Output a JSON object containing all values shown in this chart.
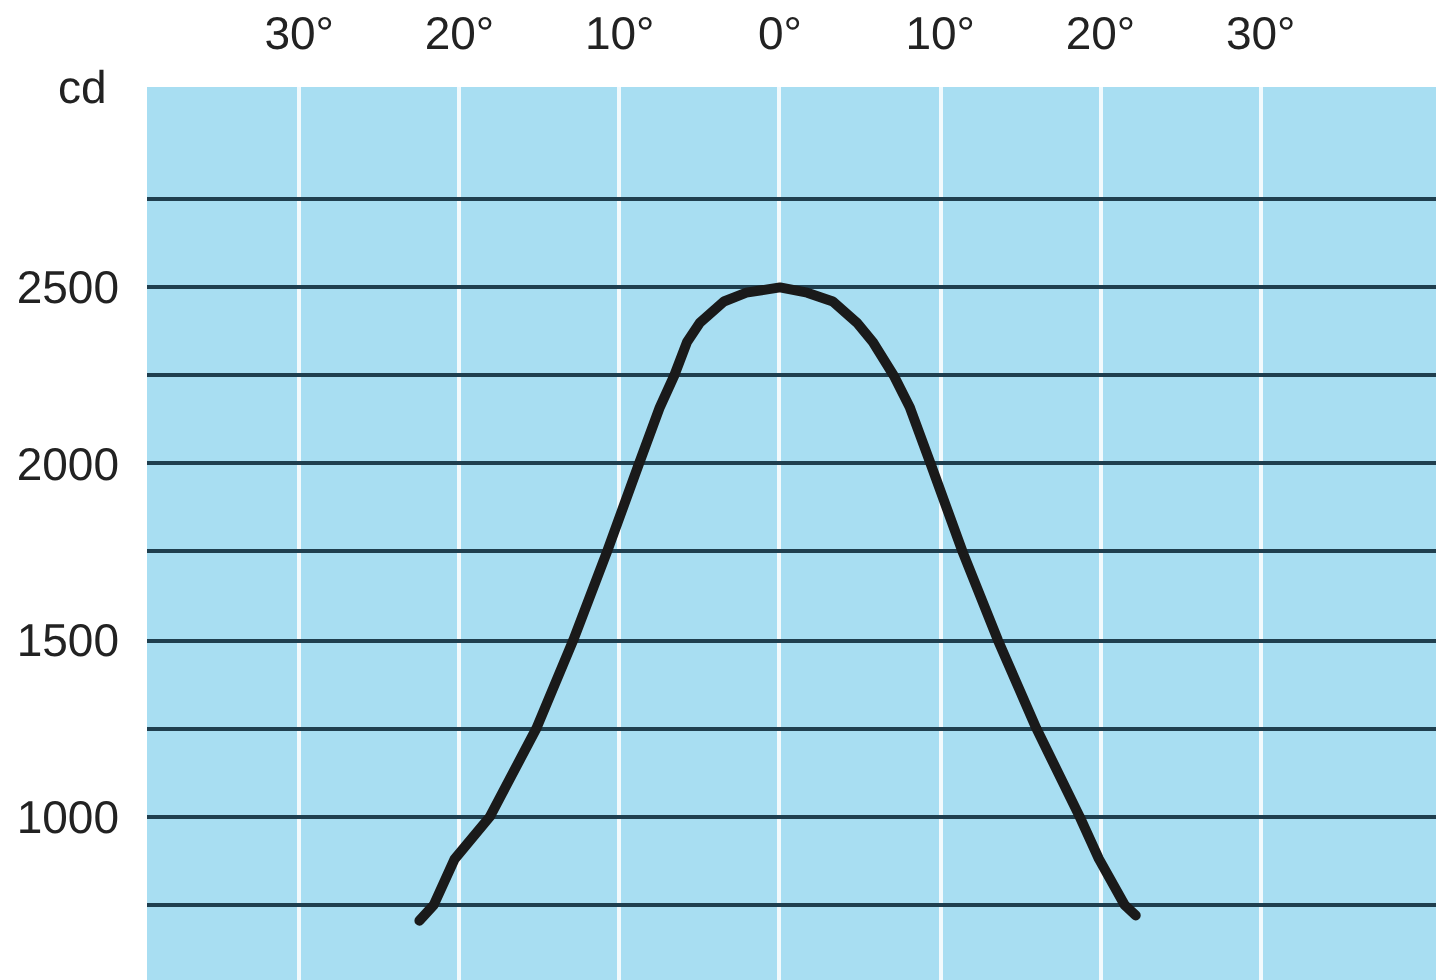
{
  "chart_data": {
    "type": "line",
    "ylabel": "cd",
    "xlim": [
      -39.5,
      41
    ],
    "ylim": [
      534,
      3068
    ],
    "xticks": [
      {
        "value": -30,
        "label": "30°"
      },
      {
        "value": -20,
        "label": "20°"
      },
      {
        "value": -10,
        "label": "10°"
      },
      {
        "value": 0,
        "label": "0°"
      },
      {
        "value": 10,
        "label": "10°"
      },
      {
        "value": 20,
        "label": "20°"
      },
      {
        "value": 30,
        "label": "30°"
      }
    ],
    "yticks": [
      {
        "value": 750,
        "label": null
      },
      1000,
      {
        "value": 1250,
        "label": null
      },
      1500,
      {
        "value": 1750,
        "label": null
      },
      2000,
      {
        "value": 2250,
        "label": null
      },
      2500,
      {
        "value": 2750,
        "label": null
      }
    ],
    "grid": true,
    "x": [
      -22.5,
      -21.6,
      -20.3,
      -18.1,
      -15.2,
      -12.9,
      -10.8,
      -8.8,
      -7.5,
      -6.6,
      -5.8,
      -5.0,
      -3.5,
      -2.1,
      0,
      1.7,
      3.3,
      4.8,
      5.8,
      7.1,
      8.1,
      9.4,
      11.4,
      13.6,
      16.0,
      18.7,
      19.9,
      21.5,
      22.2
    ],
    "series": [
      {
        "color": "#1a1a1a",
        "values": [
          705,
          750,
          880,
          1000,
          1250,
          1500,
          1750,
          2000,
          2160,
          2250,
          2345,
          2400,
          2460,
          2485,
          2500,
          2485,
          2460,
          2400,
          2345,
          2250,
          2160,
          2000,
          1750,
          1500,
          1250,
          1000,
          880,
          750,
          720
        ]
      }
    ]
  }
}
